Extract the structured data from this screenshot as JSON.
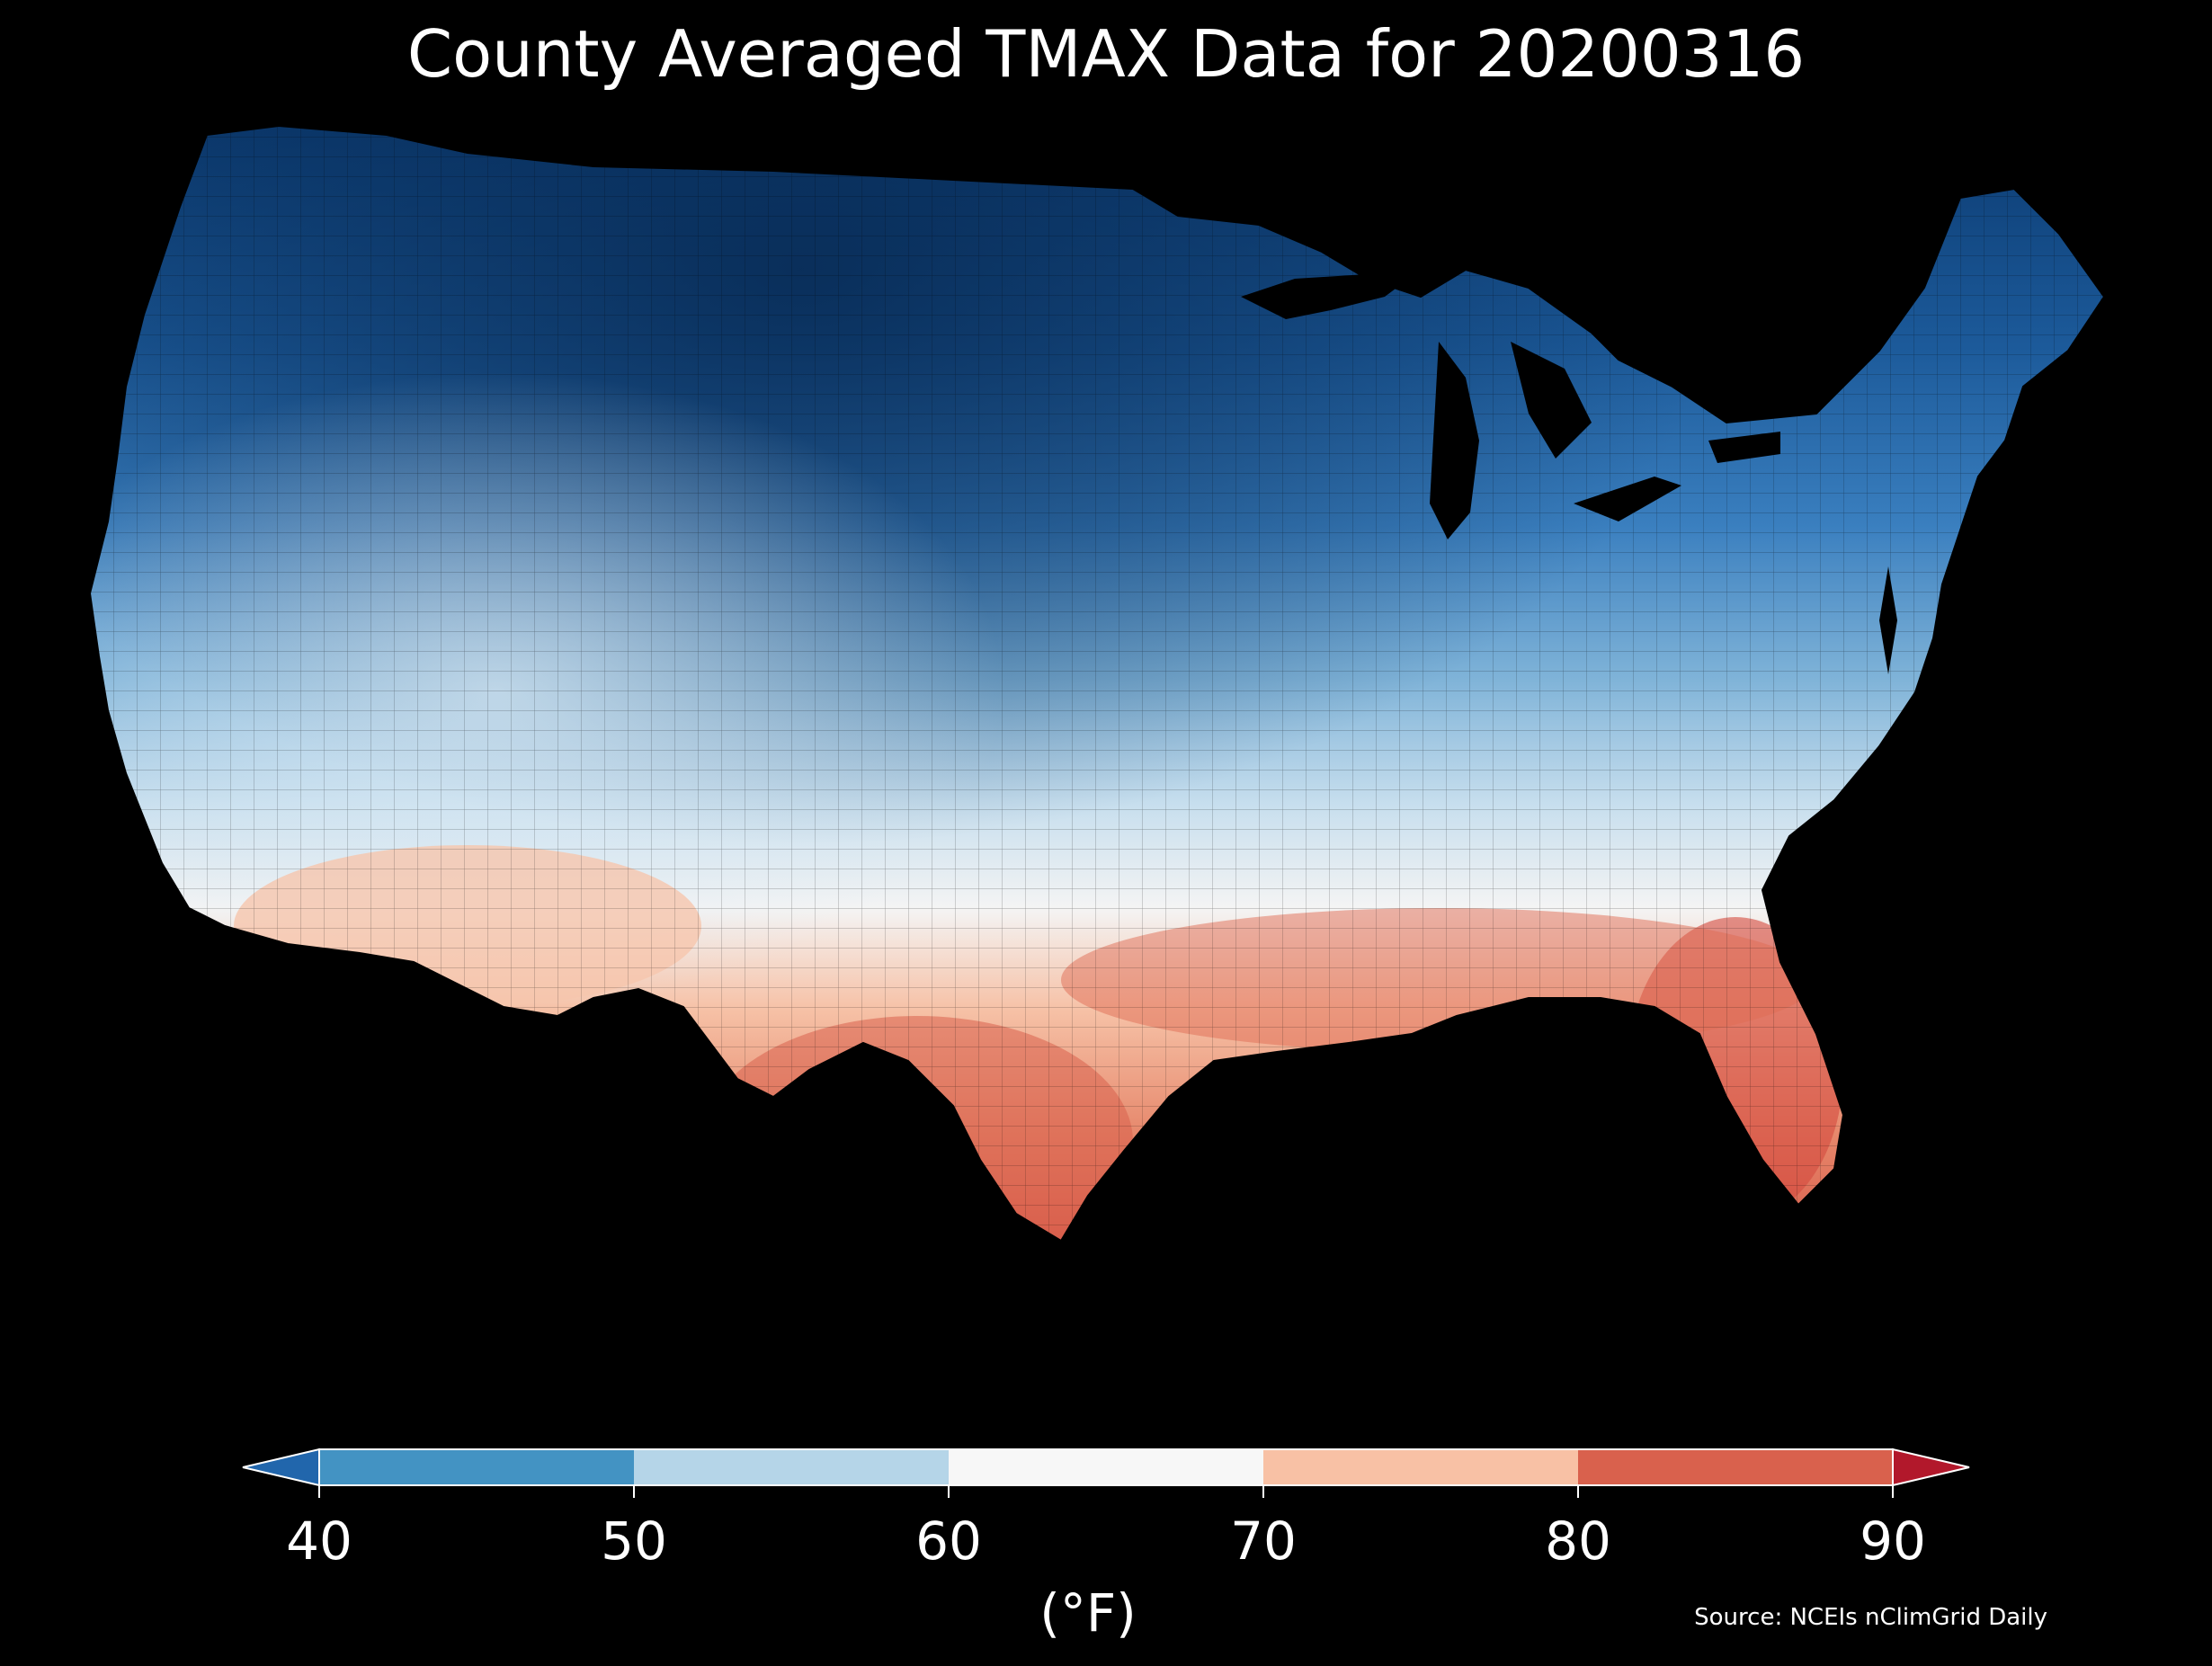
{
  "title": "County Averaged TMAX Data for 20200316",
  "legend": {
    "unit": "(°F)",
    "ticks": [
      "40",
      "50",
      "60",
      "70",
      "80",
      "90"
    ],
    "min": 40,
    "max": 90,
    "extend": "both",
    "bins": [
      {
        "from": 40,
        "to": 50,
        "color": "#4393c3"
      },
      {
        "from": 50,
        "to": 60,
        "color": "#b5d5e8"
      },
      {
        "from": 60,
        "to": 70,
        "color": "#f7f7f7"
      },
      {
        "from": 70,
        "to": 80,
        "color": "#f8c1a5"
      },
      {
        "from": 80,
        "to": 90,
        "color": "#d9614d"
      }
    ],
    "under_color": "#2166ac",
    "over_color": "#b2182b"
  },
  "source": "Source: NCEIs nClimGrid Daily",
  "map": {
    "region": "contiguous-united-states",
    "feature": "county-choropleth",
    "color_scale": "red-blue-diverging"
  }
}
